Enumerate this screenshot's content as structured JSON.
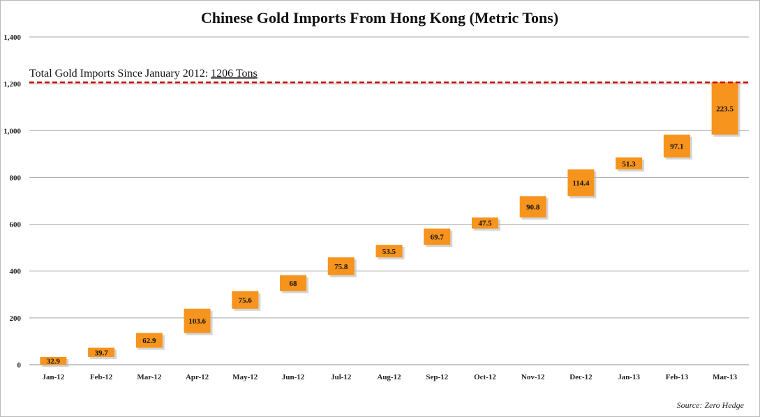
{
  "chart_data": {
    "type": "bar",
    "subtype": "waterfall",
    "title": "Chinese Gold Imports From Hong Kong (Metric Tons)",
    "categories": [
      "Jan-12",
      "Feb-12",
      "Mar-12",
      "Apr-12",
      "May-12",
      "Jun-12",
      "Jul-12",
      "Aug-12",
      "Sep-12",
      "Oct-12",
      "Nov-12",
      "Dec-12",
      "Jan-13",
      "Feb-13",
      "Mar-13"
    ],
    "values": [
      32.9,
      39.7,
      62.9,
      103.6,
      75.6,
      68,
      75.8,
      53.5,
      69.7,
      47.5,
      90.8,
      114.4,
      51.3,
      97.1,
      223.5
    ],
    "value_labels": [
      "32.9",
      "39.7",
      "62.9",
      "103.6",
      "75.6",
      "68",
      "75.8",
      "53.5",
      "69.7",
      "47.5",
      "90.8",
      "114.4",
      "51.3",
      "97.1",
      "223.5"
    ],
    "ylim": [
      0,
      1400
    ],
    "yticks": [
      0,
      200,
      400,
      600,
      800,
      1000,
      1200,
      1400
    ],
    "ytick_labels": [
      "0",
      "200",
      "400",
      "600",
      "800",
      "1,000",
      "1,200",
      "1,400"
    ],
    "grid": true,
    "bar_color": "#f7941d",
    "reference_line": {
      "value": 1206,
      "color": "#cc0000",
      "style": "dashed",
      "label_prefix": "Total Gold Imports Since January 2012: ",
      "label_value": "1206 Tons"
    },
    "source": "Source: Zero Hedge"
  }
}
